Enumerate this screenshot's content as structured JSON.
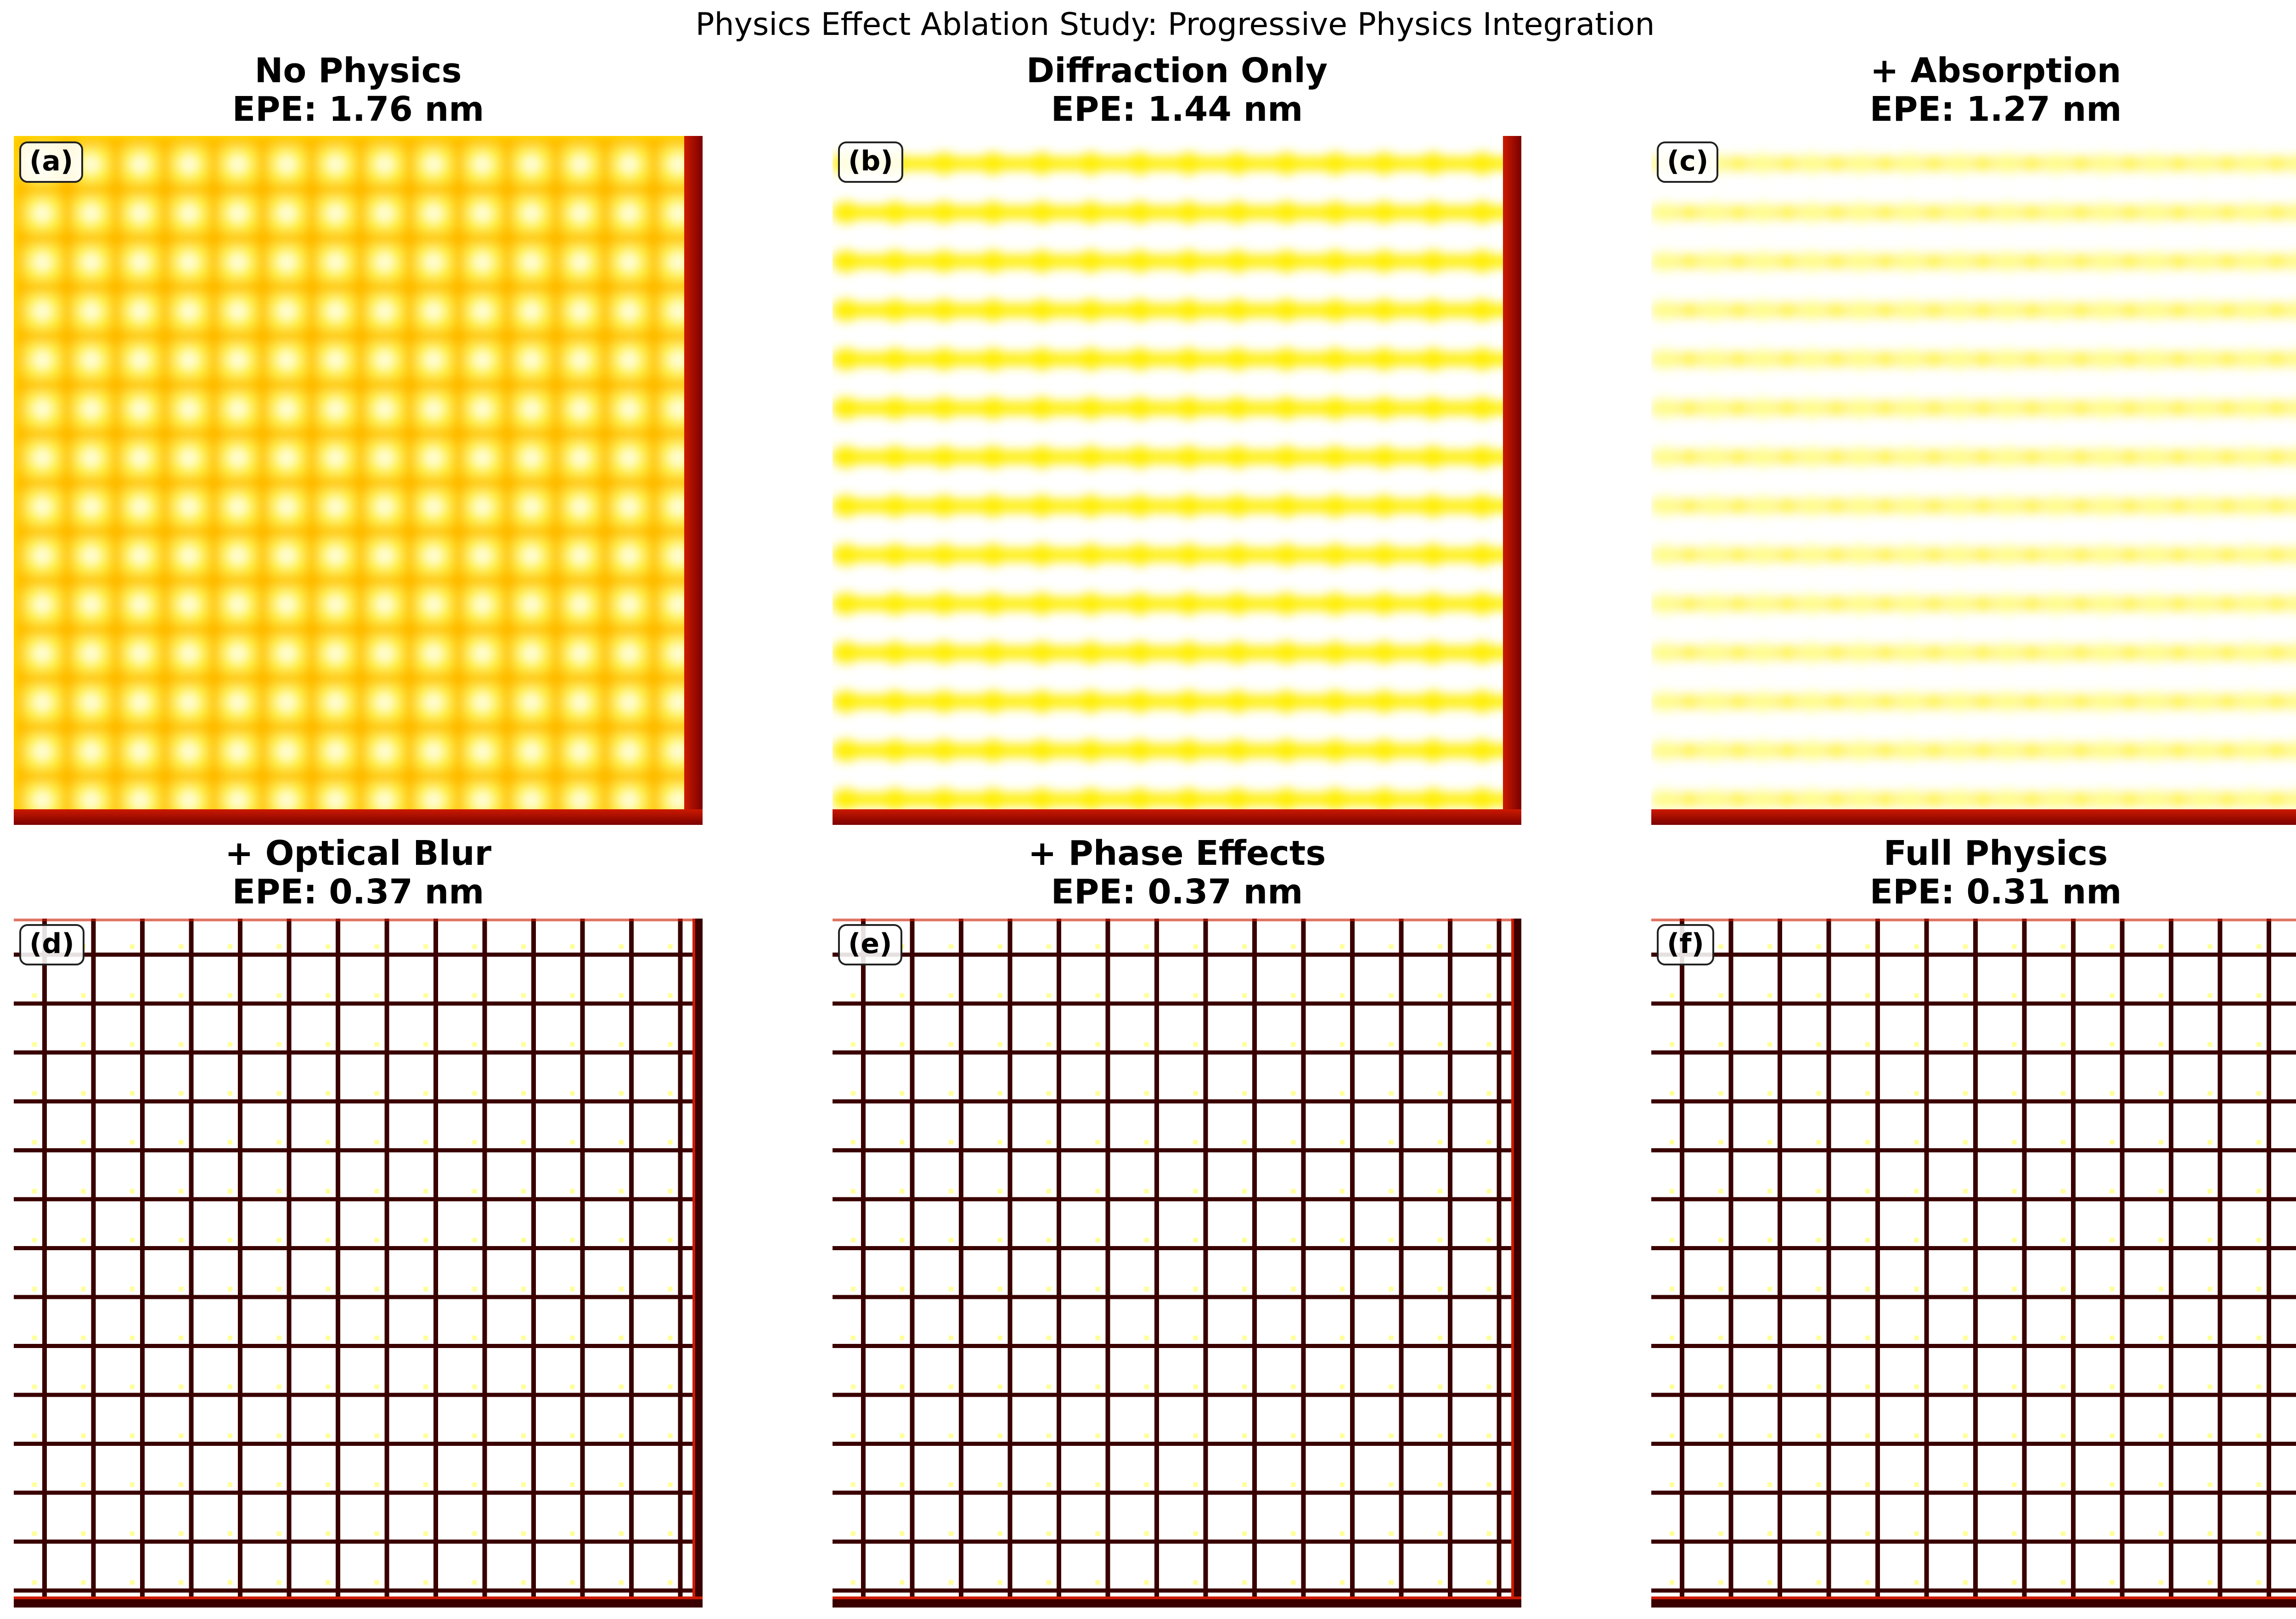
{
  "figure": {
    "title": "Physics Effect Ablation Study: Progressive Physics Integration"
  },
  "chart_data": {
    "type": "heatmap",
    "colormap": "hot",
    "grid": false,
    "layout": "2 rows x 3 columns",
    "panels": [
      {
        "label": "(a)",
        "title": "No Physics",
        "epe_text": "EPE: 1.76 nm",
        "epe_nm": 1.76,
        "style": "blurred-dots"
      },
      {
        "label": "(b)",
        "title": "Diffraction Only",
        "epe_text": "EPE: 1.44 nm",
        "epe_nm": 1.44,
        "style": "blurred-stripes"
      },
      {
        "label": "(c)",
        "title": "+ Absorption",
        "epe_text": "EPE: 1.27 nm",
        "epe_nm": 1.27,
        "style": "faint-stripes"
      },
      {
        "label": "(d)",
        "title": "+ Optical Blur",
        "epe_text": "EPE: 0.37 nm",
        "epe_nm": 0.37,
        "style": "sharp-grid"
      },
      {
        "label": "(e)",
        "title": "+ Phase Effects",
        "epe_text": "EPE: 0.37 nm",
        "epe_nm": 0.37,
        "style": "sharp-grid"
      },
      {
        "label": "(f)",
        "title": "Full Physics",
        "epe_text": "EPE: 0.31 nm",
        "epe_nm": 0.31,
        "style": "sharp-grid"
      }
    ],
    "colors": {
      "white": "#ffffff",
      "light_yellow": "#ffff99",
      "yellow": "#ffee00",
      "orange": "#ffa000",
      "red": "#cc1a00",
      "dark_red": "#7a0000",
      "line": "#3a0000"
    }
  }
}
